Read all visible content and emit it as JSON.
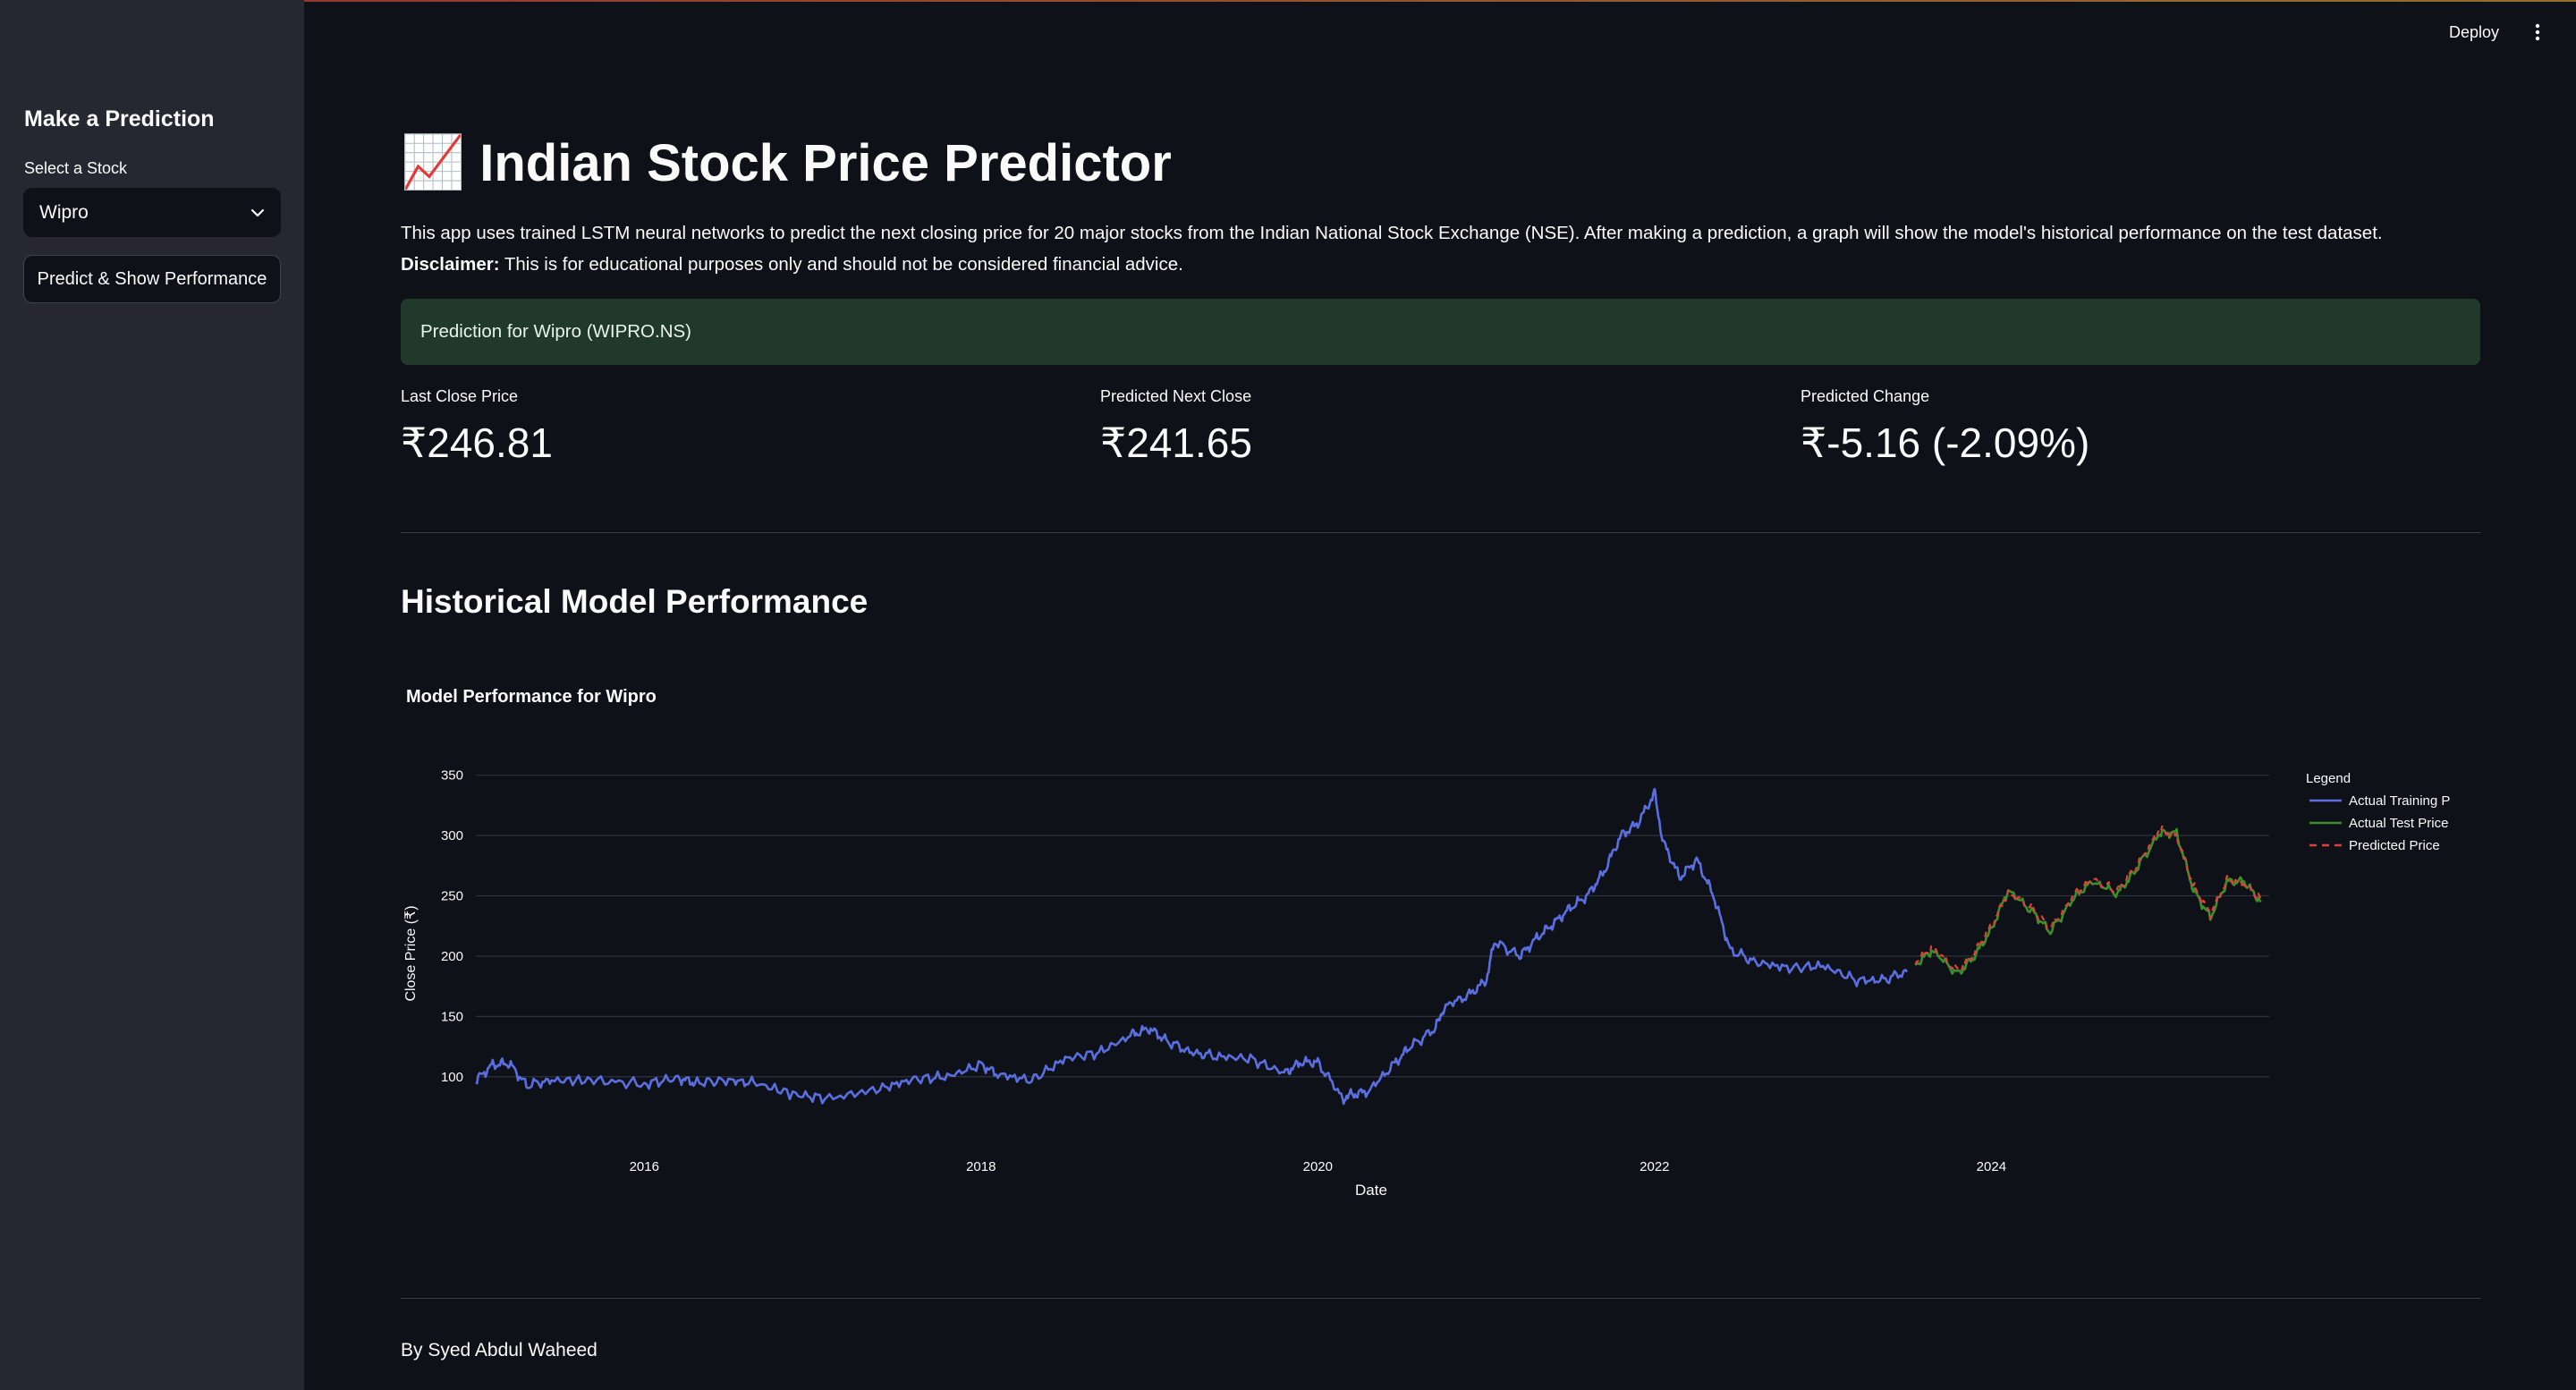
{
  "header": {
    "deploy_label": "Deploy"
  },
  "sidebar": {
    "title": "Make a Prediction",
    "select_label": "Select a Stock",
    "select_value": "Wipro",
    "button_label": "Predict & Show Performance"
  },
  "main": {
    "title_icon": "📈",
    "title": "Indian Stock Price Predictor",
    "intro": "This app uses trained LSTM neural networks to predict the next closing price for 20 major stocks from the Indian National Stock Exchange (NSE). After making a prediction, a graph will show the model's historical performance on the test dataset.",
    "disclaimer_label": "Disclaimer:",
    "disclaimer_text": "This is for educational purposes only and should not be considered financial advice.",
    "success_text": "Prediction for Wipro (WIPRO.NS)",
    "metrics": [
      {
        "label": "Last Close Price",
        "value": "₹246.81"
      },
      {
        "label": "Predicted Next Close",
        "value": "₹241.65"
      },
      {
        "label": "Predicted Change",
        "value": "₹-5.16 (-2.09%)"
      }
    ],
    "section_title": "Historical Model Performance",
    "byline": "By Syed Abdul Waheed"
  },
  "colors": {
    "background": "#0e1117",
    "sidebar": "#262730",
    "success_bg": "#21392a",
    "training": "#5a6ee0",
    "test": "#3a8f2b",
    "predicted": "#e0403a"
  },
  "chart_data": {
    "type": "line",
    "title": "Model Performance for Wipro",
    "xlabel": "Date",
    "ylabel": "Close Price (₹)",
    "x_ticks": [
      "2016",
      "2018",
      "2020",
      "2022",
      "2024"
    ],
    "y_ticks": [
      100,
      150,
      200,
      250,
      300,
      350
    ],
    "xlim": [
      2015.0,
      2025.65
    ],
    "ylim": [
      75,
      360
    ],
    "grid": true,
    "legend_title": "Legend",
    "legend_position": "right",
    "series": [
      {
        "name": "Actual Training Price",
        "style": "solid",
        "x": [
          2015.0,
          2015.1,
          2015.2,
          2015.3,
          2015.45,
          2015.7,
          2016.0,
          2016.2,
          2016.3,
          2016.5,
          2016.65,
          2016.9,
          2017.1,
          2017.4,
          2017.6,
          2017.8,
          2018.0,
          2018.1,
          2018.3,
          2018.5,
          2018.7,
          2018.9,
          2019.0,
          2019.1,
          2019.25,
          2019.4,
          2019.6,
          2019.8,
          2019.9,
          2020.0,
          2020.15,
          2020.2,
          2020.3,
          2020.45,
          2020.55,
          2020.7,
          2020.75,
          2020.9,
          2021.0,
          2021.05,
          2021.2,
          2021.3,
          2021.4,
          2021.5,
          2021.6,
          2021.7,
          2021.8,
          2021.9,
          2022.0,
          2022.05,
          2022.15,
          2022.25,
          2022.35,
          2022.45,
          2022.6,
          2022.8,
          2023.0,
          2023.2,
          2023.35,
          2023.5
        ],
        "y": [
          97,
          110,
          111,
          93,
          97,
          97,
          94,
          99,
          95,
          97,
          95,
          85,
          82,
          90,
          98,
          100,
          110,
          102,
          97,
          115,
          120,
          135,
          140,
          130,
          120,
          117,
          115,
          103,
          112,
          112,
          82,
          85,
          88,
          110,
          125,
          140,
          158,
          168,
          180,
          212,
          200,
          215,
          227,
          240,
          250,
          270,
          300,
          310,
          335,
          295,
          265,
          280,
          250,
          205,
          195,
          190,
          192,
          180,
          180,
          187
        ]
      },
      {
        "name": "Actual Test Price",
        "style": "solid",
        "x": [
          2023.55,
          2023.65,
          2023.8,
          2023.9,
          2024.0,
          2024.1,
          2024.25,
          2024.35,
          2024.5,
          2024.6,
          2024.75,
          2024.85,
          2025.0,
          2025.1,
          2025.2,
          2025.3,
          2025.4,
          2025.5,
          2025.6
        ],
        "y": [
          193,
          205,
          185,
          200,
          222,
          255,
          236,
          220,
          250,
          262,
          252,
          270,
          302,
          302,
          255,
          232,
          262,
          262,
          245
        ]
      },
      {
        "name": "Predicted Price",
        "style": "dashed",
        "x": [
          2023.55,
          2023.65,
          2023.8,
          2023.9,
          2024.0,
          2024.1,
          2024.25,
          2024.35,
          2024.5,
          2024.6,
          2024.75,
          2024.85,
          2025.0,
          2025.1,
          2025.2,
          2025.3,
          2025.4,
          2025.5,
          2025.6
        ],
        "y": [
          196,
          207,
          188,
          203,
          225,
          253,
          239,
          223,
          252,
          264,
          254,
          272,
          305,
          300,
          258,
          235,
          263,
          260,
          247
        ]
      }
    ]
  }
}
